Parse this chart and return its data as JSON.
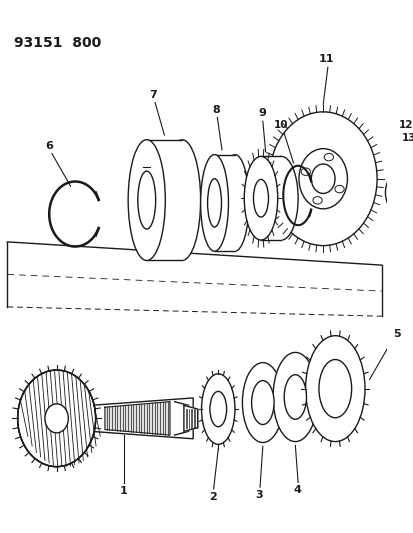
{
  "title": "93151  800",
  "bg_color": "#ffffff",
  "line_color": "#1a1a1a",
  "line_width": 1.0,
  "fig_w": 4.14,
  "fig_h": 5.33,
  "dpi": 100
}
